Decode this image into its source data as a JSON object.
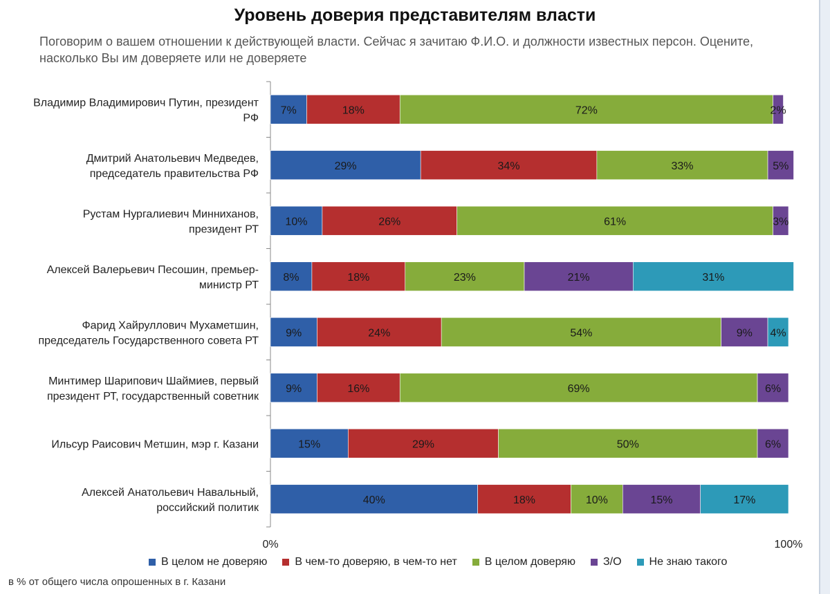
{
  "title": "Уровень доверия представителям власти",
  "subtitle": "Поговорим о вашем отношении к действующей власти. Сейчас я зачитаю Ф.И.О. и должности известных персон. Оцените, насколько Вы им доверяете или не доверяете",
  "footnote": "в % от общего числа опрошенных в г. Казани",
  "chart_data": {
    "type": "bar",
    "stacked": true,
    "orientation": "horizontal",
    "categories": [
      [
        "Владимир Владимирович Путин, президент",
        "РФ"
      ],
      [
        "Дмитрий Анатольевич Медведев,",
        "председатель правительства РФ"
      ],
      [
        "Рустам Нургалиевич Минниханов,",
        "президент РТ"
      ],
      [
        "Алексей Валерьевич Песошин, премьер-",
        "министр РТ"
      ],
      [
        "Фарид Хайруллович Мухаметшин,",
        "председатель Государственного совета РТ"
      ],
      [
        "Минтимер Шарипович Шаймиев, первый",
        "президент РТ, государственный советник"
      ],
      [
        "Ильсур Раисович Метшин, мэр г. Казани"
      ],
      [
        "Алексей Анатольевич Навальный,",
        "российский политик"
      ]
    ],
    "series": [
      {
        "name": "В целом не доверяю",
        "color": "#2f5fa8",
        "values": [
          7,
          29,
          10,
          8,
          9,
          9,
          15,
          40
        ]
      },
      {
        "name": "В чем-то доверяю, в чем-то нет",
        "color": "#b52f2f",
        "values": [
          18,
          34,
          26,
          18,
          24,
          16,
          29,
          18
        ]
      },
      {
        "name": "В целом доверяю",
        "color": "#86ac3b",
        "values": [
          72,
          33,
          61,
          23,
          54,
          69,
          50,
          10
        ]
      },
      {
        "name": "З/О",
        "color": "#6a4593",
        "values": [
          2,
          5,
          3,
          21,
          9,
          6,
          6,
          15
        ]
      },
      {
        "name": "Не знаю такого",
        "color": "#2d9ab8",
        "values": [
          0,
          0,
          0,
          31,
          4,
          0,
          0,
          17
        ]
      }
    ],
    "xlim": [
      0,
      100
    ],
    "tick_labels": [
      "0%",
      "100%"
    ]
  }
}
